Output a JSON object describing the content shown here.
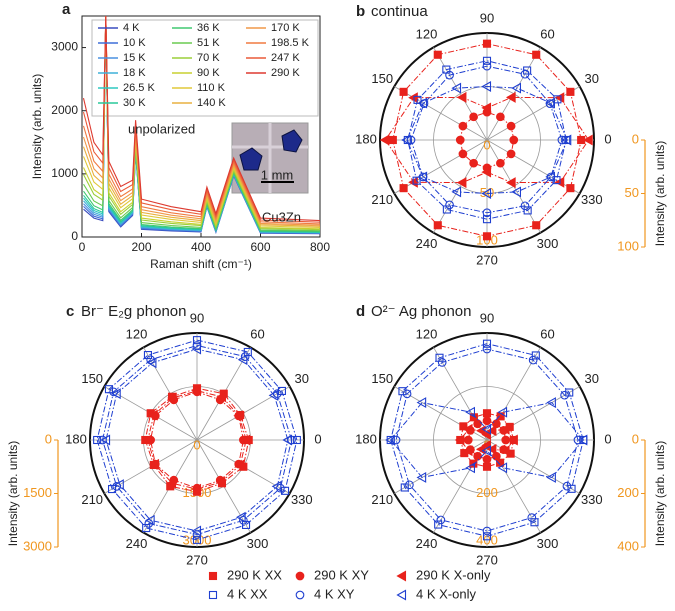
{
  "chart_data": [
    {
      "type": "line",
      "panel": "a",
      "xlabel": "Raman shift (cm⁻¹)",
      "ylabel": "Intensity (arb. units)",
      "annotations": [
        "unpolarized",
        "1 mm",
        "Cu3Zn"
      ],
      "xlim": [
        0,
        800
      ],
      "xticks": [
        0,
        200,
        400,
        600,
        800
      ],
      "ylim": [
        0,
        3500
      ],
      "yticks": [
        0,
        1000,
        2000,
        3000
      ],
      "x": [
        5,
        40,
        70,
        80,
        90,
        130,
        170,
        180,
        200,
        300,
        400,
        420,
        450,
        510,
        600,
        800
      ],
      "series": [
        {
          "name": "4 K",
          "color": "#3a4dbf",
          "values": [
            440,
            300,
            260,
            3500,
            400,
            160,
            340,
            1330,
            120,
            96,
            80,
            478,
            74,
            970,
            60,
            52
          ]
        },
        {
          "name": "10 K",
          "color": "#3f6fd8",
          "values": [
            484,
            330,
            286,
            3500,
            420,
            176,
            354,
            1343,
            132,
            106,
            88,
            486,
            81,
            977,
            66,
            57
          ]
        },
        {
          "name": "15 K",
          "color": "#4a90e0",
          "values": [
            528,
            360,
            312,
            3500,
            440,
            192,
            368,
            1356,
            144,
            115,
            96,
            494,
            89,
            984,
            72,
            62
          ]
        },
        {
          "name": "18 K",
          "color": "#3fb0d8",
          "values": [
            572,
            390,
            338,
            3500,
            460,
            208,
            382,
            1369,
            156,
            125,
            104,
            501,
            96,
            991,
            78,
            68
          ]
        },
        {
          "name": "26.5 K",
          "color": "#2ec8c0",
          "values": [
            616,
            420,
            364,
            3500,
            480,
            224,
            396,
            1382,
            168,
            134,
            112,
            509,
            104,
            998,
            84,
            73
          ]
        },
        {
          "name": "30 K",
          "color": "#29c99a",
          "values": [
            660,
            450,
            390,
            3500,
            500,
            240,
            410,
            1395,
            180,
            144,
            120,
            517,
            111,
            1005,
            90,
            78
          ]
        },
        {
          "name": "36 K",
          "color": "#40c870",
          "values": [
            726,
            495,
            429,
            3500,
            530,
            264,
            431,
            1415,
            198,
            158,
            132,
            529,
            122,
            1016,
            99,
            86
          ]
        },
        {
          "name": "51 K",
          "color": "#6acb50",
          "values": [
            836,
            570,
            494,
            3500,
            580,
            304,
            466,
            1447,
            228,
            182,
            152,
            548,
            141,
            1033,
            114,
            99
          ]
        },
        {
          "name": "70 K",
          "color": "#9ccf3a",
          "values": [
            990,
            675,
            585,
            3500,
            650,
            360,
            515,
            1493,
            270,
            216,
            180,
            576,
            167,
            1058,
            135,
            117
          ]
        },
        {
          "name": "90 K",
          "color": "#c8d030",
          "values": [
            1100,
            750,
            650,
            3500,
            700,
            400,
            550,
            1525,
            300,
            240,
            200,
            595,
            185,
            1075,
            150,
            130
          ]
        },
        {
          "name": "110 K",
          "color": "#e0c83a",
          "values": [
            1276,
            870,
            754,
            3500,
            780,
            464,
            606,
            1577,
            348,
            278,
            232,
            626,
            215,
            1103,
            174,
            151
          ]
        },
        {
          "name": "140 K",
          "color": "#e9b040",
          "values": [
            1430,
            975,
            845,
            3500,
            850,
            520,
            655,
            1623,
            390,
            312,
            260,
            654,
            241,
            1128,
            195,
            169
          ]
        },
        {
          "name": "170 K",
          "color": "#f09848",
          "values": [
            1584,
            1080,
            936,
            3500,
            920,
            576,
            704,
            1668,
            432,
            346,
            288,
            681,
            266,
            1152,
            216,
            187
          ]
        },
        {
          "name": "198.5 K",
          "color": "#f07a40",
          "values": [
            1760,
            1200,
            1040,
            3500,
            1000,
            640,
            760,
            1720,
            480,
            384,
            320,
            712,
            296,
            1180,
            240,
            208
          ]
        },
        {
          "name": "247 K",
          "color": "#ea5a38",
          "values": [
            1980,
            1350,
            1170,
            3500,
            1100,
            720,
            830,
            1785,
            540,
            432,
            360,
            751,
            333,
            1215,
            270,
            234
          ]
        },
        {
          "name": "290 K",
          "color": "#dd3a30",
          "values": [
            2200,
            1500,
            1300,
            3500,
            1200,
            800,
            900,
            1850,
            600,
            480,
            400,
            790,
            370,
            1250,
            300,
            260
          ]
        }
      ]
    },
    {
      "type": "polar",
      "panel": "b",
      "title": "continua",
      "ylabel": "Intensity (arb. units)",
      "axis_color": "#f0961e",
      "theta": [
        0,
        30,
        60,
        90,
        120,
        150,
        180,
        210,
        240,
        270,
        300,
        330
      ],
      "thetaticks": [
        0,
        30,
        60,
        90,
        120,
        150,
        180,
        210,
        240,
        270,
        300,
        330
      ],
      "rlim": [
        0,
        100
      ],
      "rticks": [
        0,
        50,
        100
      ],
      "series": [
        {
          "name": "290 K XX",
          "color": "#e8221c",
          "marker": "square",
          "filled": true,
          "values": [
            88,
            90,
            92,
            90,
            92,
            90,
            88,
            90,
            92,
            90,
            92,
            90
          ]
        },
        {
          "name": "290 K XY",
          "color": "#e8221c",
          "marker": "circle",
          "filled": true,
          "values": [
            25,
            26,
            25,
            26,
            25,
            26,
            25,
            26,
            25,
            26,
            25,
            26
          ]
        },
        {
          "name": "290 K X-only",
          "color": "#e8221c",
          "marker": "triangle-left",
          "filled": true,
          "values": [
            95,
            79,
            46,
            30,
            46,
            79,
            95,
            79,
            46,
            30,
            46,
            79
          ]
        },
        {
          "name": "4 K XX",
          "color": "#1f3fd0",
          "marker": "square",
          "filled": false,
          "values": [
            74,
            76,
            75,
            74,
            76,
            75,
            74,
            76,
            75,
            74,
            76,
            75
          ]
        },
        {
          "name": "4 K XY",
          "color": "#1f3fd0",
          "marker": "circle",
          "filled": false,
          "values": [
            70,
            68,
            71,
            69,
            70,
            68,
            71,
            69,
            70,
            68,
            71,
            69
          ]
        },
        {
          "name": "4 K X-only",
          "color": "#1f3fd0",
          "marker": "triangle-left",
          "filled": false,
          "values": [
            75,
            69,
            56,
            50,
            56,
            69,
            75,
            69,
            56,
            50,
            56,
            69
          ]
        }
      ]
    },
    {
      "type": "polar",
      "panel": "c",
      "title": "Br⁻ E₂g phonon",
      "ylabel": "Intensity (arb. units)",
      "axis_color": "#f0961e",
      "theta": [
        0,
        30,
        60,
        90,
        120,
        150,
        180,
        210,
        240,
        270,
        300,
        330
      ],
      "thetaticks": [
        0,
        30,
        60,
        90,
        120,
        150,
        180,
        210,
        240,
        270,
        300,
        330
      ],
      "rlim": [
        0,
        3000
      ],
      "rticks": [
        0,
        1500,
        3000
      ],
      "series": [
        {
          "color": "#e8221c",
          "marker": "square",
          "filled": true,
          "values": [
            1450,
            1400,
            1500,
            1450,
            1400,
            1500,
            1450,
            1400,
            1500,
            1450,
            1400,
            1500
          ]
        },
        {
          "color": "#e8221c",
          "marker": "circle",
          "filled": true,
          "values": [
            1300,
            1350,
            1300,
            1350,
            1300,
            1350,
            1300,
            1350,
            1300,
            1350,
            1300,
            1350
          ]
        },
        {
          "color": "#e8221c",
          "marker": "triangle-left",
          "filled": true,
          "values": [
            1380,
            1360,
            1400,
            1380,
            1360,
            1400,
            1380,
            1360,
            1400,
            1380,
            1360,
            1400
          ]
        },
        {
          "color": "#1f3fd0",
          "marker": "square",
          "filled": false,
          "values": [
            2800,
            2750,
            2850,
            2800,
            2750,
            2850,
            2800,
            2750,
            2850,
            2800,
            2750,
            2850
          ]
        },
        {
          "color": "#1f3fd0",
          "marker": "circle",
          "filled": false,
          "values": [
            2650,
            2600,
            2700,
            2650,
            2600,
            2700,
            2650,
            2600,
            2700,
            2650,
            2600,
            2700
          ]
        },
        {
          "color": "#1f3fd0",
          "marker": "triangle-left",
          "filled": false,
          "values": [
            2550,
            2500,
            2600,
            2550,
            2500,
            2600,
            2550,
            2500,
            2600,
            2550,
            2500,
            2600
          ]
        }
      ]
    },
    {
      "type": "polar",
      "panel": "d",
      "title": "O²⁻ Ag phonon",
      "ylabel": "Intensity (arb. units)",
      "axis_color": "#f0961e",
      "theta": [
        0,
        30,
        60,
        90,
        120,
        150,
        180,
        210,
        240,
        270,
        300,
        330
      ],
      "thetaticks": [
        0,
        30,
        60,
        90,
        120,
        150,
        180,
        210,
        240,
        270,
        300,
        330
      ],
      "rlim": [
        0,
        400
      ],
      "rticks": [
        0,
        200,
        400
      ],
      "series": [
        {
          "color": "#e8221c",
          "marker": "square",
          "filled": true,
          "values": [
            100,
            98,
            102,
            100,
            98,
            102,
            100,
            98,
            102,
            100,
            98,
            102
          ]
        },
        {
          "color": "#e8221c",
          "marker": "circle",
          "filled": true,
          "values": [
            70,
            72,
            70,
            72,
            70,
            72,
            70,
            72,
            70,
            72,
            70,
            72
          ]
        },
        {
          "color": "#e8221c",
          "marker": "triangle-left",
          "filled": true,
          "values": [
            100,
            80,
            40,
            20,
            40,
            80,
            100,
            80,
            40,
            20,
            40,
            80
          ]
        },
        {
          "color": "#1f3fd0",
          "marker": "square",
          "filled": false,
          "values": [
            360,
            355,
            365,
            360,
            355,
            365,
            360,
            355,
            365,
            360,
            355,
            365
          ]
        },
        {
          "color": "#1f3fd0",
          "marker": "circle",
          "filled": false,
          "values": [
            340,
            335,
            345,
            340,
            335,
            345,
            340,
            335,
            345,
            340,
            335,
            345
          ]
        },
        {
          "color": "#1f3fd0",
          "marker": "triangle-left",
          "filled": false,
          "values": [
            360,
            280,
            120,
            40,
            120,
            280,
            360,
            280,
            120,
            40,
            120,
            280
          ]
        }
      ]
    }
  ]
}
